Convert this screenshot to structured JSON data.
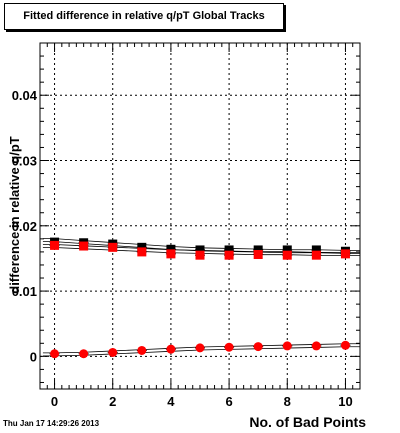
{
  "title": "Fitted difference in relative q/pT  Global Tracks",
  "timestamp": "Thu Jan 17 14:29:26 2013",
  "chart_data": {
    "type": "scatter",
    "xlabel": "No. of Bad Points",
    "ylabel": "difference in relative q/pT",
    "xlim": [
      -0.5,
      10.5
    ],
    "ylim": [
      -0.005,
      0.048
    ],
    "x_ticks": [
      0,
      2,
      4,
      6,
      8,
      10
    ],
    "x_tick_labels": [
      "0",
      "2",
      "4",
      "6",
      "8",
      "10"
    ],
    "y_ticks": [
      0,
      0.01,
      0.02,
      0.03,
      0.04
    ],
    "y_tick_labels": [
      "0",
      "0.01",
      "0.02",
      "0.03",
      "0.04"
    ],
    "grid": true,
    "x": [
      0,
      1,
      2,
      3,
      4,
      5,
      6,
      7,
      8,
      9,
      10
    ],
    "series": [
      {
        "marker": "square",
        "color": "#000000",
        "values": [
          0.0175,
          0.0174,
          0.0172,
          0.0167,
          0.0164,
          0.0163,
          0.0163,
          0.0163,
          0.0163,
          0.0163,
          0.0161
        ]
      },
      {
        "marker": "square",
        "color": "#ff0000",
        "values": [
          0.017,
          0.0169,
          0.0167,
          0.016,
          0.0157,
          0.0155,
          0.0155,
          0.0156,
          0.0155,
          0.0155,
          0.0157
        ]
      },
      {
        "marker": "circle",
        "color": "#ff0000",
        "values": [
          0.0004,
          0.0004,
          0.0006,
          0.0009,
          0.0011,
          0.0013,
          0.0014,
          0.0015,
          0.0016,
          0.0016,
          0.0017
        ]
      }
    ],
    "fit_curves": [
      {
        "color": "#000000",
        "values": [
          0.0178,
          0.0175,
          0.0172,
          0.0169,
          0.0166,
          0.0164,
          0.0163,
          0.0162,
          0.0161,
          0.0161,
          0.016
        ]
      },
      {
        "color": "#000000",
        "values": [
          0.0169,
          0.0167,
          0.0165,
          0.0163,
          0.0161,
          0.016,
          0.0159,
          0.0158,
          0.0158,
          0.0157,
          0.0157
        ]
      },
      {
        "color": "#000000",
        "values": [
          0.0003,
          0.0004,
          0.0006,
          0.0008,
          0.001,
          0.0012,
          0.0013,
          0.0014,
          0.0015,
          0.0016,
          0.0017
        ]
      }
    ]
  }
}
